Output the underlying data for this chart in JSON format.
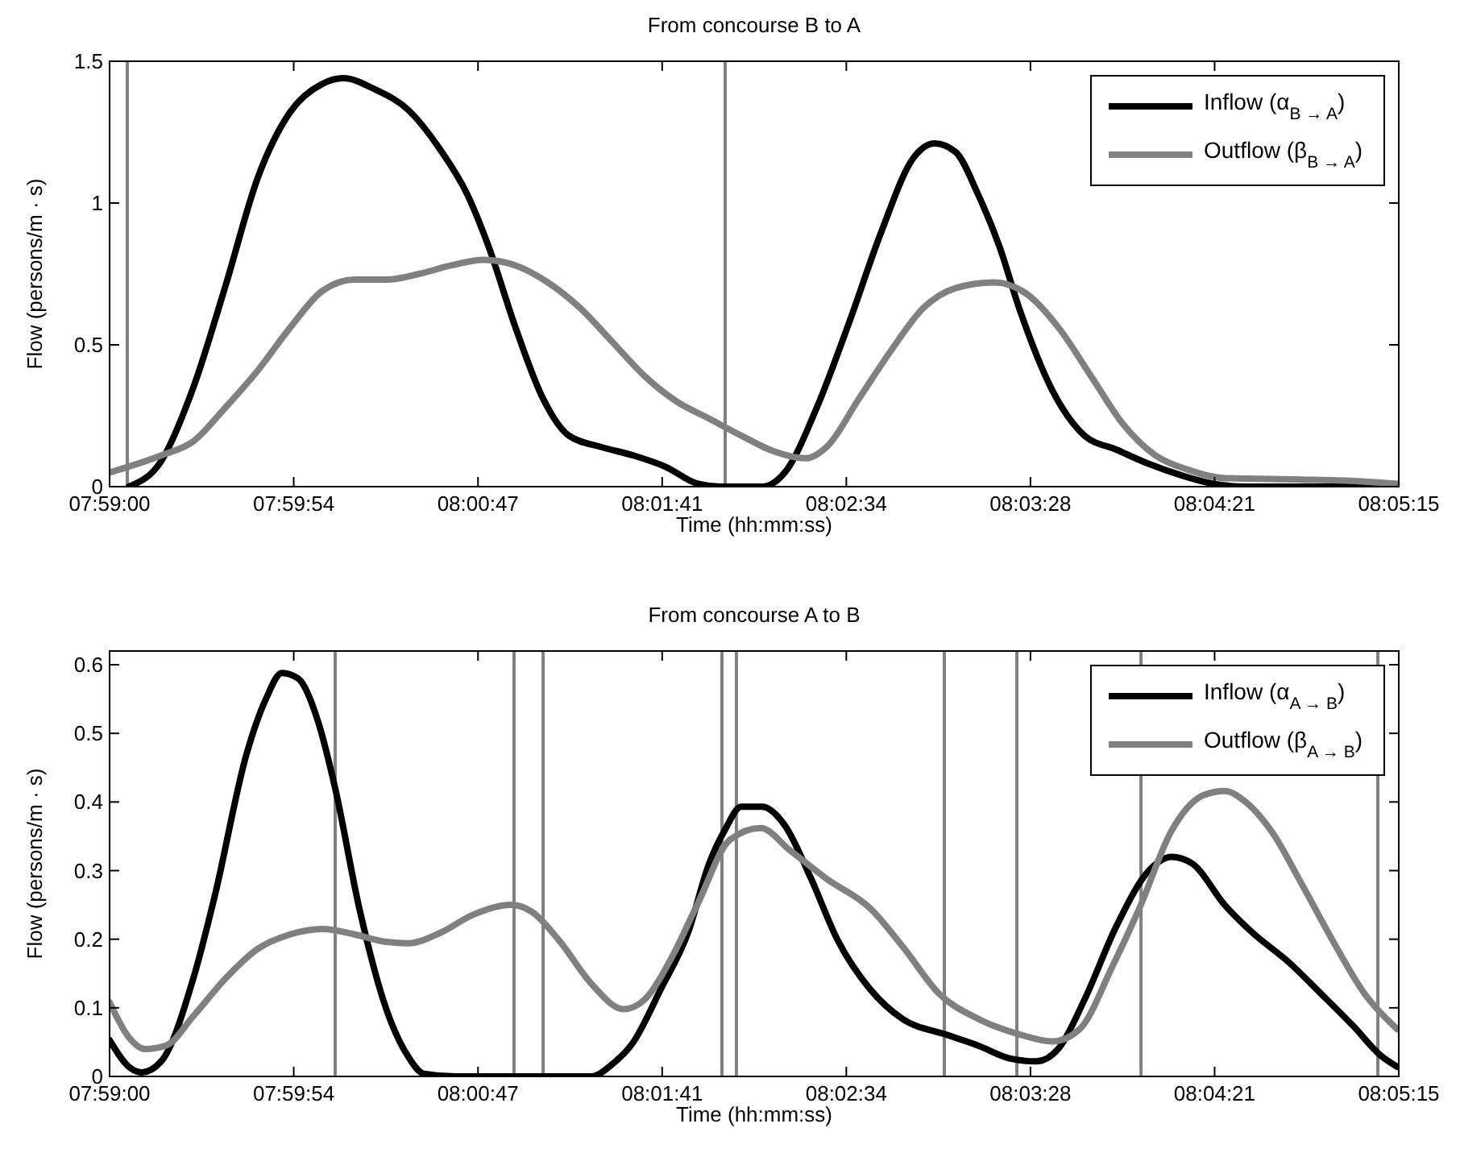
{
  "chart_data": [
    {
      "type": "line",
      "title": "From concourse B to A",
      "xlabel": "Time (hh:mm:ss)",
      "ylabel": "Flow (persons/m · s)",
      "xlim": [
        7.98333,
        8.0875
      ],
      "xticks": [
        {
          "value": 7.98333,
          "label": "07:59:00"
        },
        {
          "value": 7.99821,
          "label": "07:59:54"
        },
        {
          "value": 8.0131,
          "label": "08:00:47"
        },
        {
          "value": 8.02798,
          "label": "08:01:41"
        },
        {
          "value": 8.04286,
          "label": "08:02:34"
        },
        {
          "value": 8.05774,
          "label": "08:03:28"
        },
        {
          "value": 8.07262,
          "label": "08:04:21"
        },
        {
          "value": 8.0875,
          "label": "08:05:15"
        }
      ],
      "ylim": [
        0,
        1.5
      ],
      "yticks": [
        0,
        0.5,
        1,
        1.5
      ],
      "grid": false,
      "legend": "top right",
      "line_style": "solid",
      "marker": "none",
      "ref_lines": [
        {
          "axis": "x",
          "value": 7.98476,
          "color": "#808080"
        },
        {
          "axis": "x",
          "value": 8.03307,
          "color": "#808080"
        }
      ],
      "series": [
        {
          "name": "Inflow (α$_{B → A}$)",
          "color": "#000000",
          "x": [
            7.98489,
            7.9875,
            7.9901,
            7.99271,
            7.99531,
            7.99791,
            8.00052,
            8.00221,
            8.00481,
            8.00742,
            8.01002,
            8.01224,
            8.01393,
            8.01614,
            8.01836,
            8.02044,
            8.02304,
            8.02565,
            8.02825,
            8.03086,
            8.03268,
            8.03606,
            8.03789,
            8.04049,
            8.0431,
            8.0457,
            8.0483,
            8.05,
            8.05169,
            8.05351,
            8.05521,
            8.0569,
            8.0595,
            8.06211,
            8.06471,
            8.06731,
            8.06992,
            8.07252,
            8.07513,
            8.0875
          ],
          "values": [
            0,
            0.09,
            0.35,
            0.71,
            1.09,
            1.32,
            1.42,
            1.44,
            1.4,
            1.33,
            1.19,
            1.03,
            0.85,
            0.56,
            0.31,
            0.18,
            0.14,
            0.11,
            0.07,
            0.01,
            0,
            0,
            0.05,
            0.28,
            0.58,
            0.9,
            1.16,
            1.21,
            1.18,
            1.03,
            0.85,
            0.62,
            0.34,
            0.18,
            0.13,
            0.08,
            0.04,
            0.01,
            0,
            0
          ]
        },
        {
          "name": "Outflow (β$_{B → A}$)",
          "color": "#808080",
          "x": [
            7.98333,
            7.9875,
            7.9901,
            7.99271,
            7.99531,
            7.99791,
            8.00052,
            8.00312,
            8.00573,
            8.00833,
            8.01093,
            8.01354,
            8.01614,
            8.01875,
            8.02135,
            8.02396,
            8.02656,
            8.02916,
            8.03177,
            8.03437,
            8.03698,
            8.03958,
            8.04127,
            8.04388,
            8.04648,
            8.04909,
            8.05169,
            8.05481,
            8.05742,
            8.06002,
            8.06263,
            8.06523,
            8.06784,
            8.07044,
            8.07343,
            8.07955,
            8.08385,
            8.08737
          ],
          "values": [
            0.05,
            0.11,
            0.16,
            0.28,
            0.41,
            0.56,
            0.69,
            0.73,
            0.73,
            0.75,
            0.78,
            0.8,
            0.78,
            0.72,
            0.63,
            0.51,
            0.39,
            0.3,
            0.24,
            0.18,
            0.125,
            0.1,
            0.14,
            0.31,
            0.48,
            0.63,
            0.7,
            0.72,
            0.68,
            0.56,
            0.39,
            0.22,
            0.11,
            0.06,
            0.03,
            0.025,
            0.02,
            0.01
          ]
        }
      ]
    },
    {
      "type": "line",
      "title": "From concourse A to B",
      "xlabel": "Time (hh:mm:ss)",
      "ylabel": "Flow (persons/m · s)",
      "xlim": [
        7.98333,
        8.0875
      ],
      "xticks": [
        {
          "value": 7.98333,
          "label": "07:59:00"
        },
        {
          "value": 7.99821,
          "label": "07:59:54"
        },
        {
          "value": 8.0131,
          "label": "08:00:47"
        },
        {
          "value": 8.02798,
          "label": "08:01:41"
        },
        {
          "value": 8.04286,
          "label": "08:02:34"
        },
        {
          "value": 8.05774,
          "label": "08:03:28"
        },
        {
          "value": 8.07262,
          "label": "08:04:21"
        },
        {
          "value": 8.0875,
          "label": "08:05:15"
        }
      ],
      "ylim": [
        0,
        0.62
      ],
      "yticks": [
        0,
        0.1,
        0.2,
        0.3,
        0.4,
        0.5,
        0.6
      ],
      "grid": false,
      "legend": "top right",
      "line_style": "solid",
      "marker": "none",
      "ref_lines": [
        {
          "axis": "x",
          "value": 8.00156,
          "color": "#808080"
        },
        {
          "axis": "x",
          "value": 8.01601,
          "color": "#808080"
        },
        {
          "axis": "x",
          "value": 8.01836,
          "color": "#808080"
        },
        {
          "axis": "x",
          "value": 8.03281,
          "color": "#808080"
        },
        {
          "axis": "x",
          "value": 8.03398,
          "color": "#808080"
        },
        {
          "axis": "x",
          "value": 8.05078,
          "color": "#808080"
        },
        {
          "axis": "x",
          "value": 8.05664,
          "color": "#808080"
        },
        {
          "axis": "x",
          "value": 8.06667,
          "color": "#808080"
        },
        {
          "axis": "x",
          "value": 8.08581,
          "color": "#808080"
        }
      ],
      "series": [
        {
          "name": "Inflow (α$_{A → B}$)",
          "color": "#000000",
          "x": [
            7.98333,
            7.98489,
            7.98593,
            7.9875,
            7.9901,
            7.99179,
            7.9944,
            7.99596,
            7.99726,
            7.99856,
            8.00013,
            8.00156,
            8.00351,
            8.00573,
            8.00742,
            8.00872,
            8.01133,
            8.02226,
            8.02396,
            8.02565,
            8.02786,
            8.03008,
            8.03177,
            8.03307,
            8.03437,
            8.03606,
            8.03789,
            8.03997,
            8.04218,
            8.04479,
            8.04739,
            8.05091,
            8.05351,
            8.05612,
            8.0582,
            8.06002,
            8.06211,
            8.06471,
            8.06731,
            8.06914,
            8.07083,
            8.07343,
            8.07565,
            8.07864,
            8.08125,
            8.08385,
            8.08607,
            8.08737
          ],
          "values": [
            0.053,
            0.014,
            0.006,
            0.022,
            0.143,
            0.26,
            0.47,
            0.55,
            0.588,
            0.58,
            0.52,
            0.42,
            0.245,
            0.096,
            0.03,
            0.004,
            0,
            0,
            0.018,
            0.05,
            0.127,
            0.21,
            0.31,
            0.36,
            0.393,
            0.393,
            0.366,
            0.29,
            0.198,
            0.127,
            0.084,
            0.061,
            0.045,
            0.026,
            0.022,
            0.041,
            0.112,
            0.22,
            0.3,
            0.32,
            0.31,
            0.25,
            0.21,
            0.166,
            0.12,
            0.073,
            0.03,
            0.014
          ]
        },
        {
          "name": "Outflow (β$_{A → B}$)",
          "color": "#808080",
          "x": [
            7.98333,
            7.98489,
            7.98619,
            7.98789,
            7.9901,
            7.99271,
            7.99531,
            7.99791,
            8.00052,
            8.00312,
            8.00573,
            8.00742,
            8.01002,
            8.01263,
            8.01575,
            8.01745,
            8.01966,
            8.02226,
            8.02487,
            8.02656,
            8.02877,
            8.03086,
            8.03346,
            8.03594,
            8.03828,
            8.04127,
            8.04479,
            8.04739,
            8.05039,
            8.05351,
            8.0569,
            8.0595,
            8.06172,
            8.06433,
            8.06654,
            8.06914,
            8.07175,
            8.07343,
            8.07513,
            8.07734,
            8.07955,
            8.08216,
            8.08476,
            8.08737
          ],
          "values": [
            0.108,
            0.057,
            0.04,
            0.045,
            0.088,
            0.143,
            0.186,
            0.207,
            0.215,
            0.207,
            0.196,
            0.194,
            0.209,
            0.235,
            0.25,
            0.24,
            0.198,
            0.135,
            0.098,
            0.112,
            0.174,
            0.252,
            0.345,
            0.362,
            0.33,
            0.288,
            0.245,
            0.19,
            0.12,
            0.084,
            0.061,
            0.051,
            0.069,
            0.159,
            0.245,
            0.358,
            0.41,
            0.416,
            0.4,
            0.354,
            0.284,
            0.198,
            0.12,
            0.069
          ]
        }
      ]
    }
  ]
}
